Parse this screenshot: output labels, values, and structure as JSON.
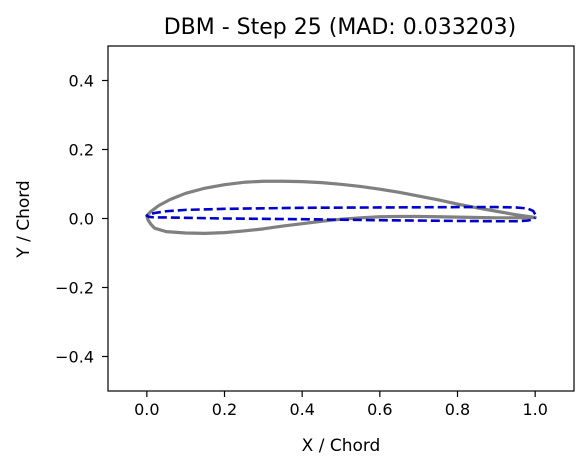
{
  "chart_data": {
    "type": "line",
    "title": "DBM - Step 25 (MAD: 0.033203)",
    "xlabel": "X / Chord",
    "ylabel": "Y / Chord",
    "xlim": [
      -0.1,
      1.1
    ],
    "ylim": [
      -0.5,
      0.5
    ],
    "xticks": [
      0.0,
      0.2,
      0.4,
      0.6,
      0.8,
      1.0
    ],
    "xtick_labels": [
      "0.0",
      "0.2",
      "0.4",
      "0.6",
      "0.8",
      "1.0"
    ],
    "yticks": [
      -0.4,
      -0.2,
      0.0,
      0.2,
      0.4
    ],
    "ytick_labels": [
      "−0.4",
      "−0.2",
      "0.0",
      "0.2",
      "0.4"
    ],
    "grid": false,
    "legend": false,
    "series": [
      {
        "color": "#808080",
        "line_style": "solid",
        "x": [
          1.0,
          0.95,
          0.9,
          0.85,
          0.8,
          0.75,
          0.7,
          0.65,
          0.6,
          0.55,
          0.5,
          0.45,
          0.4,
          0.35,
          0.3,
          0.25,
          0.2,
          0.15,
          0.1,
          0.06,
          0.03,
          0.01,
          0.0,
          0.003,
          0.01,
          0.02,
          0.05,
          0.1,
          0.15,
          0.2,
          0.25,
          0.3,
          0.35,
          0.4,
          0.45,
          0.5,
          0.55,
          0.6,
          0.65,
          0.7,
          0.75,
          0.8,
          0.85,
          0.9,
          0.95,
          1.0
        ],
        "y": [
          0.003,
          0.011,
          0.021,
          0.031,
          0.042,
          0.054,
          0.065,
          0.076,
          0.085,
          0.093,
          0.099,
          0.104,
          0.107,
          0.108,
          0.108,
          0.105,
          0.098,
          0.088,
          0.073,
          0.055,
          0.037,
          0.02,
          0.008,
          -0.004,
          -0.016,
          -0.028,
          -0.038,
          -0.042,
          -0.043,
          -0.041,
          -0.036,
          -0.03,
          -0.022,
          -0.015,
          -0.008,
          -0.002,
          0.002,
          0.005,
          0.006,
          0.006,
          0.005,
          0.004,
          0.003,
          0.002,
          0.002,
          0.003
        ]
      },
      {
        "color": "#0000cc",
        "line_style": "dashed",
        "x": [
          1.0,
          0.995,
          0.98,
          0.95,
          0.9,
          0.8,
          0.6,
          0.4,
          0.2,
          0.1,
          0.05,
          0.02,
          0.005,
          0.0,
          0.005,
          0.02,
          0.05,
          0.1,
          0.2,
          0.4,
          0.6,
          0.8,
          0.9,
          0.95,
          0.98,
          0.995,
          1.0
        ],
        "y": [
          0.012,
          0.022,
          0.029,
          0.032,
          0.033,
          0.033,
          0.032,
          0.031,
          0.028,
          0.025,
          0.021,
          0.016,
          0.012,
          0.008,
          0.005,
          0.003,
          0.003,
          0.002,
          0.0,
          -0.002,
          -0.005,
          -0.007,
          -0.008,
          -0.008,
          -0.006,
          -0.003,
          0.003
        ]
      }
    ]
  }
}
